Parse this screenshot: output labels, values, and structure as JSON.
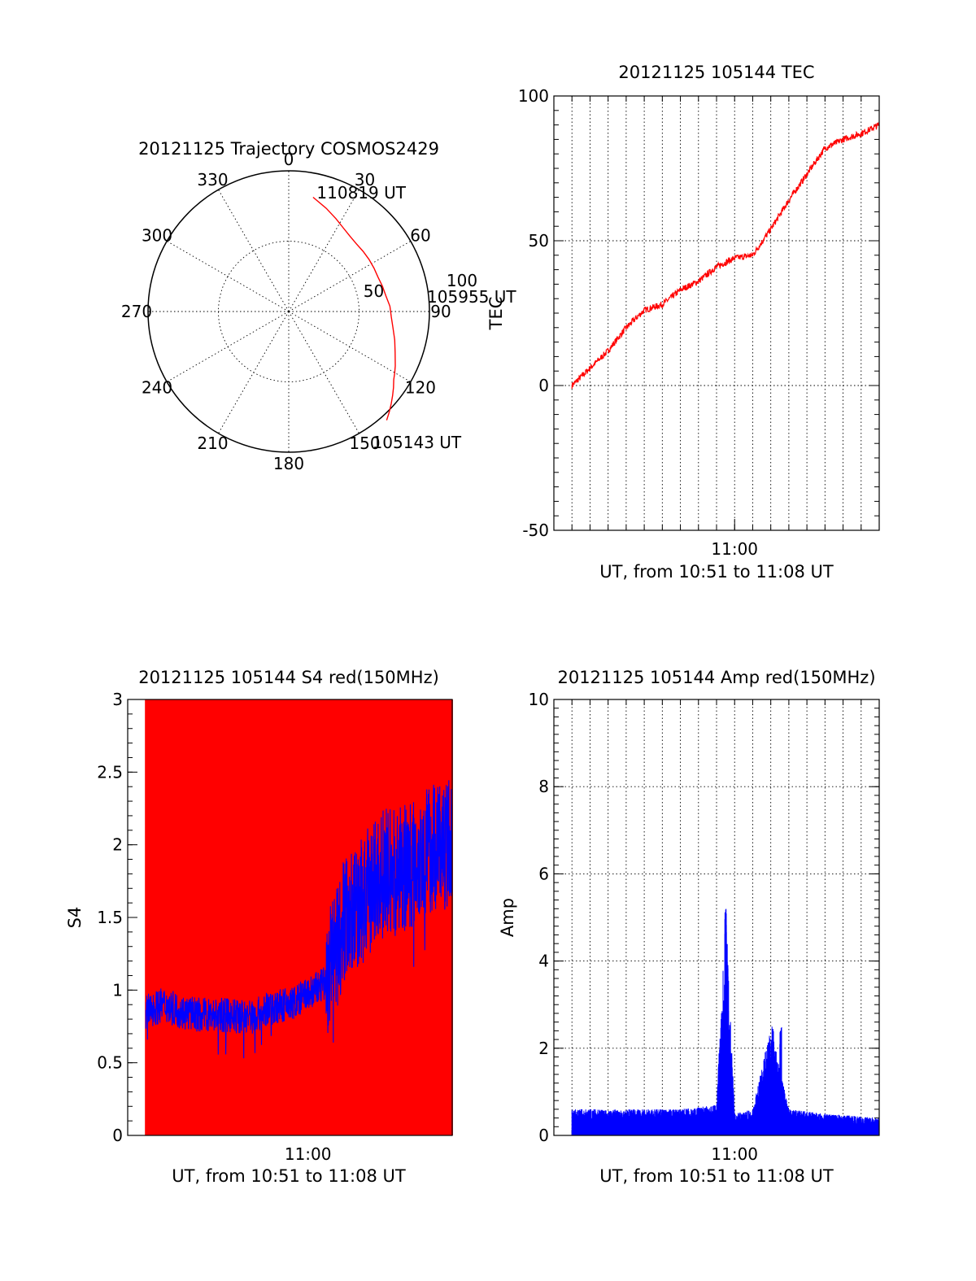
{
  "chart_data": [
    {
      "type": "polar",
      "title": "20121125 Trajectory COSMOS2429",
      "azimuth_labels": [
        "0",
        "30",
        "60",
        "90",
        "120",
        "150",
        "180",
        "210",
        "240",
        "270",
        "300",
        "330"
      ],
      "radial_labels": [
        "50",
        "100"
      ],
      "rlim": [
        0,
        100
      ],
      "series": [
        {
          "color": "#ff0000",
          "points": [
            [
              12,
              83
            ],
            [
              20,
              78
            ],
            [
              27,
              74
            ],
            [
              33,
              71
            ],
            [
              39,
              69
            ],
            [
              45,
              68
            ],
            [
              51,
              68
            ],
            [
              57,
              68
            ],
            [
              63,
              68
            ],
            [
              69,
              68
            ],
            [
              75,
              69
            ],
            [
              81,
              70
            ],
            [
              87,
              72
            ],
            [
              93,
              73
            ],
            [
              99,
              75
            ],
            [
              105,
              78
            ],
            [
              111,
              81
            ],
            [
              117,
              85
            ],
            [
              120,
              87
            ],
            [
              123,
              89
            ],
            [
              126,
              92
            ],
            [
              129,
              95
            ],
            [
              132,
              98
            ],
            [
              135,
              101
            ],
            [
              138,
              104
            ]
          ]
        }
      ],
      "annotations": [
        {
          "text": "110819 UT",
          "az": 14,
          "r": 87
        },
        {
          "text": "105955 UT",
          "az": 84,
          "r": 100
        },
        {
          "text": "105143 UT",
          "az": 147,
          "r": 111
        }
      ]
    },
    {
      "type": "line",
      "title": "20121125 105144 TEC",
      "xlabel": "UT, from 10:51 to 11:08 UT",
      "ylabel": "TEC",
      "xlim": [
        "10:50",
        "11:08"
      ],
      "ylim": [
        -50,
        100
      ],
      "yticks": [
        "-50",
        "0",
        "50",
        "100"
      ],
      "xticks": [
        {
          "at": "11:00",
          "label": "11:00"
        }
      ],
      "grid": true,
      "series": [
        {
          "color": "#ff0000",
          "x": [
            "10:51",
            "10:52",
            "10:53",
            "10:54",
            "10:55",
            "10:56",
            "10:57",
            "10:58",
            "10:59",
            "11:00",
            "11:01",
            "11:02",
            "11:03",
            "11:04",
            "11:05",
            "11:06",
            "11:07",
            "11:08"
          ],
          "y": [
            0,
            6,
            12,
            20,
            26,
            28,
            33,
            36,
            41,
            44,
            45,
            54,
            64,
            73,
            82,
            85,
            87,
            90
          ]
        }
      ]
    },
    {
      "type": "line",
      "title": "20121125 105144 S4 red(150MHz)",
      "xlabel": "UT, from 10:51 to 11:08 UT",
      "ylabel": "S4",
      "xlim": [
        "10:50",
        "11:08"
      ],
      "ylim": [
        0,
        3
      ],
      "yticks": [
        "0",
        "0.5",
        "1",
        "1.5",
        "2",
        "2.5",
        "3"
      ],
      "xticks": [
        {
          "at": "11:00",
          "label": "11:00"
        }
      ],
      "series": [
        {
          "color": "#0000ff",
          "x": [
            "10:51",
            "10:52",
            "10:53",
            "10:54",
            "10:55",
            "10:56",
            "10:57",
            "10:58",
            "10:59",
            "11:00",
            "11:01",
            "11:02",
            "11:03",
            "11:04",
            "11:05",
            "11:06",
            "11:07",
            "11:08"
          ],
          "y": [
            0.85,
            0.9,
            0.85,
            0.83,
            0.83,
            0.82,
            0.82,
            0.88,
            0.9,
            0.97,
            1.05,
            1.5,
            1.6,
            1.8,
            1.8,
            1.9,
            2.0,
            2.0
          ]
        },
        {
          "color": "#ff0000",
          "description_kind": "dense vertical spikes to 3"
        }
      ]
    },
    {
      "type": "line",
      "title": "20121125 105144 Amp red(150MHz)",
      "xlabel": "UT, from 10:51 to 11:08 UT",
      "ylabel": "Amp",
      "xlim": [
        "10:50",
        "11:08"
      ],
      "ylim": [
        0,
        10
      ],
      "yticks": [
        "0",
        "2",
        "4",
        "6",
        "8",
        "10"
      ],
      "xticks": [
        {
          "at": "11:00",
          "label": "11:00"
        }
      ],
      "grid": true,
      "series": [
        {
          "color": "#0000ff",
          "x": [
            "10:51",
            "10:53",
            "10:55",
            "10:57",
            "10:59",
            "10:59.5",
            "11:00",
            "11:01",
            "11:02",
            "11:03",
            "11:05",
            "11:08"
          ],
          "y": [
            0.6,
            0.6,
            0.6,
            0.6,
            0.7,
            5.3,
            0.5,
            0.6,
            2.5,
            0.6,
            0.5,
            0.4
          ]
        }
      ]
    }
  ]
}
